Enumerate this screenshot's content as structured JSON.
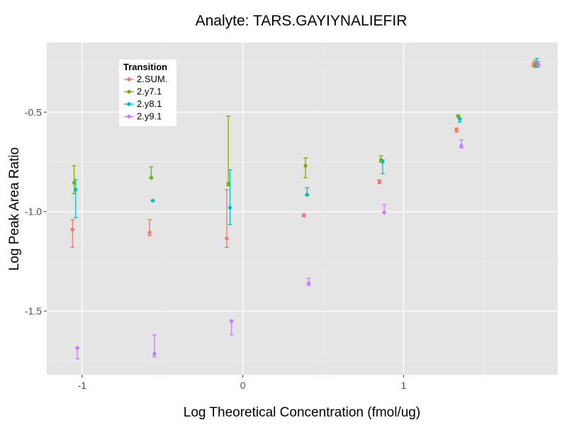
{
  "chart_data": {
    "type": "scatter",
    "title": "Analyte: TARS.GAYIYNALIEFIR",
    "xlabel": "Log Theoretical Concentration (fmol/ug)",
    "ylabel": "Log Peak Area Ratio",
    "xlim": [
      -1.22,
      1.96
    ],
    "ylim": [
      -1.82,
      -0.15
    ],
    "x_ticks": [
      -1,
      0,
      1
    ],
    "x_tick_labels": [
      "-1",
      "0",
      "1"
    ],
    "y_ticks": [
      -0.5,
      -1.0,
      -1.5
    ],
    "y_tick_labels": [
      "-0.5",
      "-1.0",
      "-1.5"
    ],
    "grid": true,
    "legend": {
      "title": "Transition",
      "position": "top-left"
    },
    "series": [
      {
        "name": "2.SUM.",
        "color": "#F8766D",
        "points": [
          {
            "x": -1.06,
            "y": -1.09,
            "ymin": -1.18,
            "ymax": -1.04
          },
          {
            "x": -0.58,
            "y": -1.105,
            "ymin": -1.12,
            "ymax": -1.04
          },
          {
            "x": -0.1,
            "y": -1.135,
            "ymin": -1.18,
            "ymax": -0.89
          },
          {
            "x": 0.38,
            "y": -1.02,
            "ymin": -1.025,
            "ymax": -1.012
          },
          {
            "x": 0.85,
            "y": -0.85,
            "ymin": -0.86,
            "ymax": -0.84
          },
          {
            "x": 1.33,
            "y": -0.59,
            "ymin": -0.6,
            "ymax": -0.58
          },
          {
            "x": 1.81,
            "y": -0.26,
            "ymin": -0.27,
            "ymax": -0.25
          }
        ]
      },
      {
        "name": "2.y7.1",
        "color": "#7CAE00",
        "points": [
          {
            "x": -1.05,
            "y": -0.855,
            "ymin": -0.91,
            "ymax": -0.77
          },
          {
            "x": -0.57,
            "y": -0.83,
            "ymin": -0.83,
            "ymax": -0.775
          },
          {
            "x": -0.09,
            "y": -0.86,
            "ymin": -0.87,
            "ymax": -0.52
          },
          {
            "x": 0.39,
            "y": -0.77,
            "ymin": -0.83,
            "ymax": -0.73
          },
          {
            "x": 0.86,
            "y": -0.74,
            "ymin": -0.75,
            "ymax": -0.72
          },
          {
            "x": 1.34,
            "y": -0.52,
            "ymin": -0.525,
            "ymax": -0.515
          },
          {
            "x": 1.82,
            "y": -0.265,
            "ymin": -0.275,
            "ymax": -0.24
          }
        ]
      },
      {
        "name": "2.y8.1",
        "color": "#00BFC4",
        "points": [
          {
            "x": -1.04,
            "y": -0.89,
            "ymin": -1.03,
            "ymax": -0.84
          },
          {
            "x": -0.56,
            "y": -0.945,
            "ymin": -0.945,
            "ymax": -0.945
          },
          {
            "x": -0.08,
            "y": -0.98,
            "ymin": -1.065,
            "ymax": -0.79
          },
          {
            "x": 0.4,
            "y": -0.915,
            "ymin": -0.92,
            "ymax": -0.88
          },
          {
            "x": 0.87,
            "y": -0.75,
            "ymin": -0.81,
            "ymax": -0.74
          },
          {
            "x": 1.35,
            "y": -0.535,
            "ymin": -0.55,
            "ymax": -0.53
          },
          {
            "x": 1.83,
            "y": -0.255,
            "ymin": -0.275,
            "ymax": -0.23
          }
        ]
      },
      {
        "name": "2.y9.1",
        "color": "#C77CFF",
        "points": [
          {
            "x": -1.03,
            "y": -1.685,
            "ymin": -1.74,
            "ymax": -1.685
          },
          {
            "x": -0.55,
            "y": -1.715,
            "ymin": -1.73,
            "ymax": -1.62
          },
          {
            "x": -0.07,
            "y": -1.55,
            "ymin": -1.62,
            "ymax": -1.55
          },
          {
            "x": 0.41,
            "y": -1.36,
            "ymin": -1.37,
            "ymax": -1.335
          },
          {
            "x": 0.88,
            "y": -1.005,
            "ymin": -1.005,
            "ymax": -0.965
          },
          {
            "x": 1.36,
            "y": -0.67,
            "ymin": -0.68,
            "ymax": -0.64
          },
          {
            "x": 1.84,
            "y": -0.26,
            "ymin": -0.27,
            "ymax": -0.245
          }
        ]
      }
    ]
  }
}
